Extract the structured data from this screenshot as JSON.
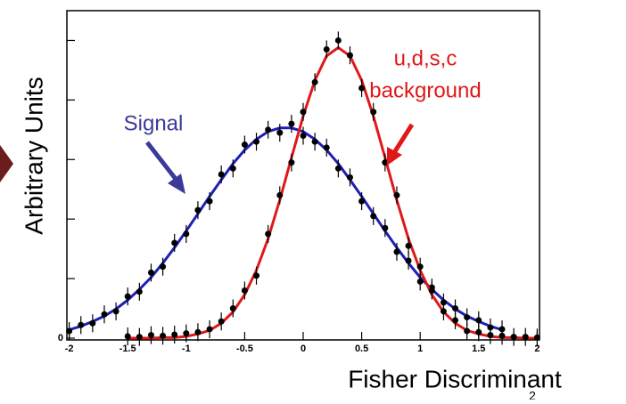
{
  "chart_data": {
    "type": "line",
    "xlabel": "Fisher Discriminant",
    "ylabel": "Arbitrary Units",
    "annotations": [
      "Signal",
      "u,d,s,c",
      "background"
    ],
    "page_number": "2",
    "xlim": [
      -2.02,
      2.02
    ],
    "ylim": [
      -0.03,
      5.5
    ],
    "xticks": [
      -2,
      -1.5,
      -1,
      -0.5,
      0,
      0.5,
      1,
      1.5,
      2
    ],
    "yticks": [
      0
    ],
    "y_unlabeled_ticks": [
      1,
      2,
      3,
      4,
      5
    ],
    "series": [
      {
        "style": "line",
        "color": "#1f1fb4",
        "x": [
          -2,
          -1.9,
          -1.8,
          -1.7,
          -1.6,
          -1.5,
          -1.4,
          -1.3,
          -1.2,
          -1.1,
          -1,
          -0.9,
          -0.8,
          -0.7,
          -0.6,
          -0.5,
          -0.4,
          -0.3,
          -0.2,
          -0.1,
          0,
          0.1,
          0.2,
          0.3,
          0.4,
          0.5,
          0.6,
          0.7,
          0.8,
          0.9,
          1,
          1.1,
          1.2,
          1.3,
          1.4,
          1.5,
          1.6,
          1.7
        ],
        "values": [
          0.14,
          0.2,
          0.28,
          0.37,
          0.49,
          0.64,
          0.82,
          1.02,
          1.26,
          1.52,
          1.8,
          2.09,
          2.38,
          2.66,
          2.93,
          3.16,
          3.34,
          3.47,
          3.53,
          3.53,
          3.47,
          3.34,
          3.16,
          2.93,
          2.66,
          2.38,
          2.09,
          1.8,
          1.52,
          1.26,
          1.02,
          0.82,
          0.64,
          0.49,
          0.37,
          0.28,
          0.2,
          0.14
        ]
      },
      {
        "style": "points",
        "color": "#000000",
        "error": 0.15,
        "x": [
          -2,
          -1.9,
          -1.8,
          -1.7,
          -1.6,
          -1.5,
          -1.4,
          -1.3,
          -1.2,
          -1.1,
          -1,
          -0.9,
          -0.8,
          -0.7,
          -0.6,
          -0.5,
          -0.4,
          -0.3,
          -0.2,
          -0.1,
          0,
          0.1,
          0.2,
          0.3,
          0.4,
          0.5,
          0.6,
          0.7,
          0.8,
          0.9,
          1,
          1.1,
          1.2,
          1.3,
          1.4,
          1.5,
          1.6,
          1.7
        ],
        "values": [
          0.12,
          0.22,
          0.25,
          0.4,
          0.45,
          0.7,
          0.78,
          1.1,
          1.2,
          1.6,
          1.75,
          2.15,
          2.3,
          2.75,
          2.85,
          3.25,
          3.3,
          3.5,
          3.45,
          3.6,
          3.4,
          3.3,
          3.2,
          2.85,
          2.7,
          2.3,
          2.05,
          1.85,
          1.45,
          1.3,
          0.95,
          0.85,
          0.6,
          0.5,
          0.35,
          0.3,
          0.18,
          0.15
        ]
      },
      {
        "style": "line",
        "color": "#e01818",
        "x": [
          -1.5,
          -1.4,
          -1.3,
          -1.2,
          -1.1,
          -1,
          -0.9,
          -0.8,
          -0.7,
          -0.6,
          -0.5,
          -0.4,
          -0.3,
          -0.2,
          -0.1,
          0,
          0.1,
          0.2,
          0.3,
          0.4,
          0.5,
          0.6,
          0.7,
          0.8,
          0.9,
          1,
          1.1,
          1.2,
          1.3,
          1.4,
          1.5,
          1.6,
          1.7,
          1.8,
          1.9,
          2
        ],
        "values": [
          0,
          0,
          0,
          0.01,
          0.01,
          0.03,
          0.07,
          0.13,
          0.25,
          0.44,
          0.73,
          1.14,
          1.67,
          2.32,
          3.03,
          3.73,
          4.33,
          4.74,
          4.88,
          4.74,
          4.33,
          3.73,
          3.03,
          2.32,
          1.67,
          1.14,
          0.73,
          0.44,
          0.25,
          0.13,
          0.07,
          0.03,
          0.01,
          0.01,
          0,
          0
        ]
      },
      {
        "style": "points",
        "color": "#000000",
        "error": 0.15,
        "x": [
          -1.5,
          -1.4,
          -1.3,
          -1.2,
          -1.1,
          -1,
          -0.9,
          -0.8,
          -0.7,
          -0.6,
          -0.5,
          -0.4,
          -0.3,
          -0.2,
          -0.1,
          0,
          0.1,
          0.2,
          0.3,
          0.4,
          0.5,
          0.6,
          0.7,
          0.8,
          0.9,
          1,
          1.1,
          1.2,
          1.3,
          1.4,
          1.5,
          1.6,
          1.7,
          1.8,
          1.9,
          2
        ],
        "values": [
          0.03,
          0.02,
          0.05,
          0.04,
          0.06,
          0.08,
          0.1,
          0.15,
          0.28,
          0.5,
          0.8,
          1.05,
          1.75,
          2.4,
          2.95,
          3.8,
          4.3,
          4.85,
          5,
          4.75,
          4.2,
          3.8,
          2.95,
          2.4,
          1.55,
          1.2,
          0.8,
          0.45,
          0.3,
          0.12,
          0.1,
          0.05,
          0.04,
          0.02,
          0.02,
          0.01
        ]
      }
    ]
  }
}
